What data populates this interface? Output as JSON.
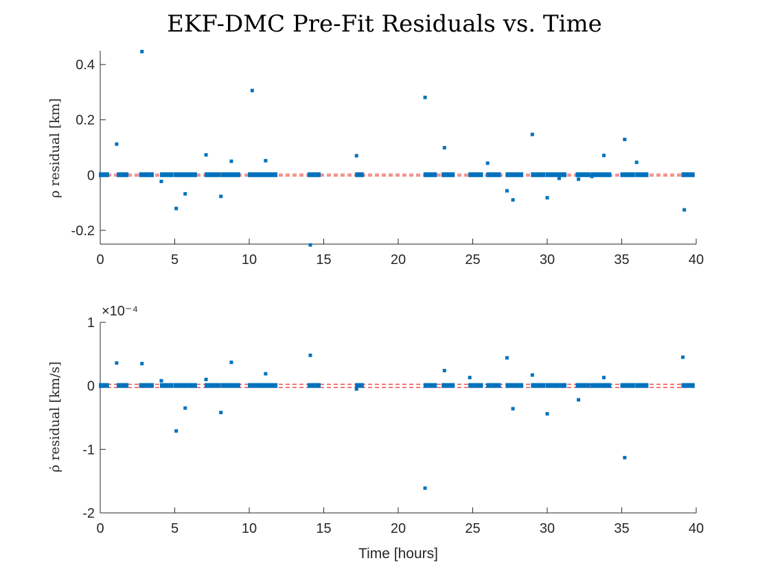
{
  "figure_title": "EKF-DMC Pre-Fit Residuals vs. Time",
  "colors": {
    "marker": "#0072BD",
    "reference": "#e8302a",
    "axis": "#262626"
  },
  "chart_data": [
    {
      "type": "scatter",
      "title": "EKF-DMC Pre-Fit Residuals vs. Time",
      "xlabel": "",
      "ylabel": "ρ residual [km]",
      "xlim": [
        0,
        40
      ],
      "ylim": [
        -0.25,
        0.45
      ],
      "xticks": [
        0,
        5,
        10,
        15,
        20,
        25,
        30,
        35,
        40
      ],
      "yticks": [
        -0.2,
        0,
        0.2,
        0.4
      ],
      "ytick_labels": [
        "-0.2",
        "0",
        "0.2",
        "0.4"
      ],
      "exponent_label": "",
      "reference_lines": [
        0.003,
        -0.003
      ],
      "grid": false,
      "points": [
        [
          2.8,
          0.447
        ],
        [
          1.1,
          0.112
        ],
        [
          10.2,
          0.306
        ],
        [
          21.8,
          0.281
        ],
        [
          29.0,
          0.147
        ],
        [
          35.2,
          0.129
        ],
        [
          23.1,
          0.099
        ],
        [
          7.1,
          0.073
        ],
        [
          17.2,
          0.07
        ],
        [
          33.8,
          0.071
        ],
        [
          8.8,
          0.05
        ],
        [
          11.1,
          0.052
        ],
        [
          26.0,
          0.043
        ],
        [
          36.0,
          0.046
        ],
        [
          4.1,
          -0.023
        ],
        [
          5.1,
          -0.121
        ],
        [
          5.7,
          -0.068
        ],
        [
          8.1,
          -0.077
        ],
        [
          14.1,
          -0.253
        ],
        [
          27.3,
          -0.057
        ],
        [
          27.7,
          -0.09
        ],
        [
          30.0,
          -0.082
        ],
        [
          30.8,
          -0.012
        ],
        [
          32.1,
          -0.015
        ],
        [
          33.0,
          -0.005
        ],
        [
          39.2,
          -0.126
        ]
      ],
      "clusters": [
        [
          0.0,
          0.5
        ],
        [
          1.2,
          1.8
        ],
        [
          2.7,
          3.5
        ],
        [
          4.1,
          4.8
        ],
        [
          5.0,
          6.4
        ],
        [
          7.1,
          8.0
        ],
        [
          8.2,
          9.3
        ],
        [
          10.0,
          10.9
        ],
        [
          11.0,
          11.8
        ],
        [
          14.0,
          14.7
        ],
        [
          17.2,
          17.6
        ],
        [
          21.8,
          22.5
        ],
        [
          23.0,
          23.7
        ],
        [
          24.8,
          25.6
        ],
        [
          26.0,
          26.8
        ],
        [
          27.3,
          28.3
        ],
        [
          29.0,
          29.8
        ],
        [
          30.0,
          31.2
        ],
        [
          32.0,
          32.8
        ],
        [
          33.0,
          34.2
        ],
        [
          35.0,
          35.8
        ],
        [
          36.0,
          36.7
        ],
        [
          39.1,
          39.8
        ]
      ]
    },
    {
      "type": "scatter",
      "title": "",
      "xlabel": "Time [hours]",
      "ylabel": "ρ̇ residual [km/s]",
      "xlim": [
        0,
        40
      ],
      "ylim": [
        -2,
        1
      ],
      "xticks": [
        0,
        5,
        10,
        15,
        20,
        25,
        30,
        35,
        40
      ],
      "yticks": [
        -2,
        -1,
        0,
        1
      ],
      "ytick_labels": [
        "-2",
        "-1",
        "0",
        "1"
      ],
      "exponent_label": "×10⁻⁴",
      "reference_lines": [
        0.025,
        -0.025
      ],
      "grid": false,
      "points": [
        [
          1.1,
          0.36
        ],
        [
          2.8,
          0.35
        ],
        [
          4.1,
          0.08
        ],
        [
          7.1,
          0.1
        ],
        [
          8.8,
          0.37
        ],
        [
          11.1,
          0.19
        ],
        [
          14.1,
          0.48
        ],
        [
          23.1,
          0.24
        ],
        [
          24.8,
          0.13
        ],
        [
          27.3,
          0.44
        ],
        [
          29.0,
          0.17
        ],
        [
          33.8,
          0.13
        ],
        [
          39.1,
          0.45
        ],
        [
          5.1,
          -0.71
        ],
        [
          5.7,
          -0.35
        ],
        [
          8.1,
          -0.42
        ],
        [
          17.2,
          -0.05
        ],
        [
          21.8,
          -1.61
        ],
        [
          27.7,
          -0.36
        ],
        [
          30.0,
          -0.44
        ],
        [
          32.1,
          -0.22
        ],
        [
          35.2,
          -1.13
        ]
      ],
      "clusters": [
        [
          0.0,
          0.5
        ],
        [
          1.2,
          1.8
        ],
        [
          2.7,
          3.5
        ],
        [
          4.1,
          4.8
        ],
        [
          5.0,
          6.4
        ],
        [
          7.1,
          8.0
        ],
        [
          8.2,
          9.3
        ],
        [
          10.0,
          10.9
        ],
        [
          11.0,
          11.8
        ],
        [
          14.0,
          14.7
        ],
        [
          17.2,
          17.6
        ],
        [
          21.8,
          22.5
        ],
        [
          23.0,
          23.7
        ],
        [
          24.8,
          25.6
        ],
        [
          26.0,
          26.8
        ],
        [
          27.3,
          28.3
        ],
        [
          29.0,
          29.8
        ],
        [
          30.0,
          31.2
        ],
        [
          32.0,
          32.8
        ],
        [
          33.0,
          34.2
        ],
        [
          35.0,
          35.8
        ],
        [
          36.0,
          36.7
        ],
        [
          39.1,
          39.8
        ]
      ]
    }
  ]
}
